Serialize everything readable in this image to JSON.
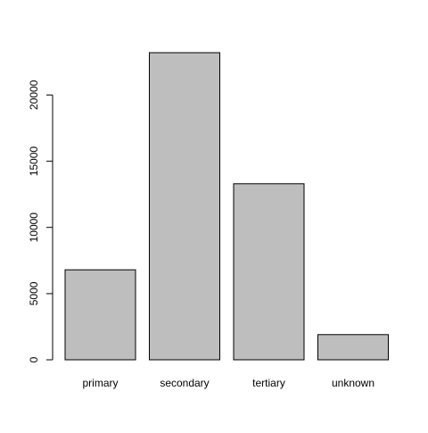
{
  "chart_data": {
    "type": "bar",
    "title": "",
    "xlabel": "",
    "ylabel": "",
    "categories": [
      "primary",
      "secondary",
      "tertiary",
      "unknown"
    ],
    "values": [
      6800,
      23200,
      13300,
      1900
    ],
    "ylim": [
      0,
      23200
    ],
    "y_ticks": [
      0,
      5000,
      10000,
      15000,
      20000
    ],
    "y_tick_labels": [
      "0",
      "5000",
      "10000",
      "15000",
      "20000"
    ],
    "grid": false,
    "legend": "none",
    "colors": {
      "bar_fill": "#bebebe",
      "bar_stroke": "#000000",
      "axis": "#000000",
      "background": "#ffffff"
    }
  }
}
